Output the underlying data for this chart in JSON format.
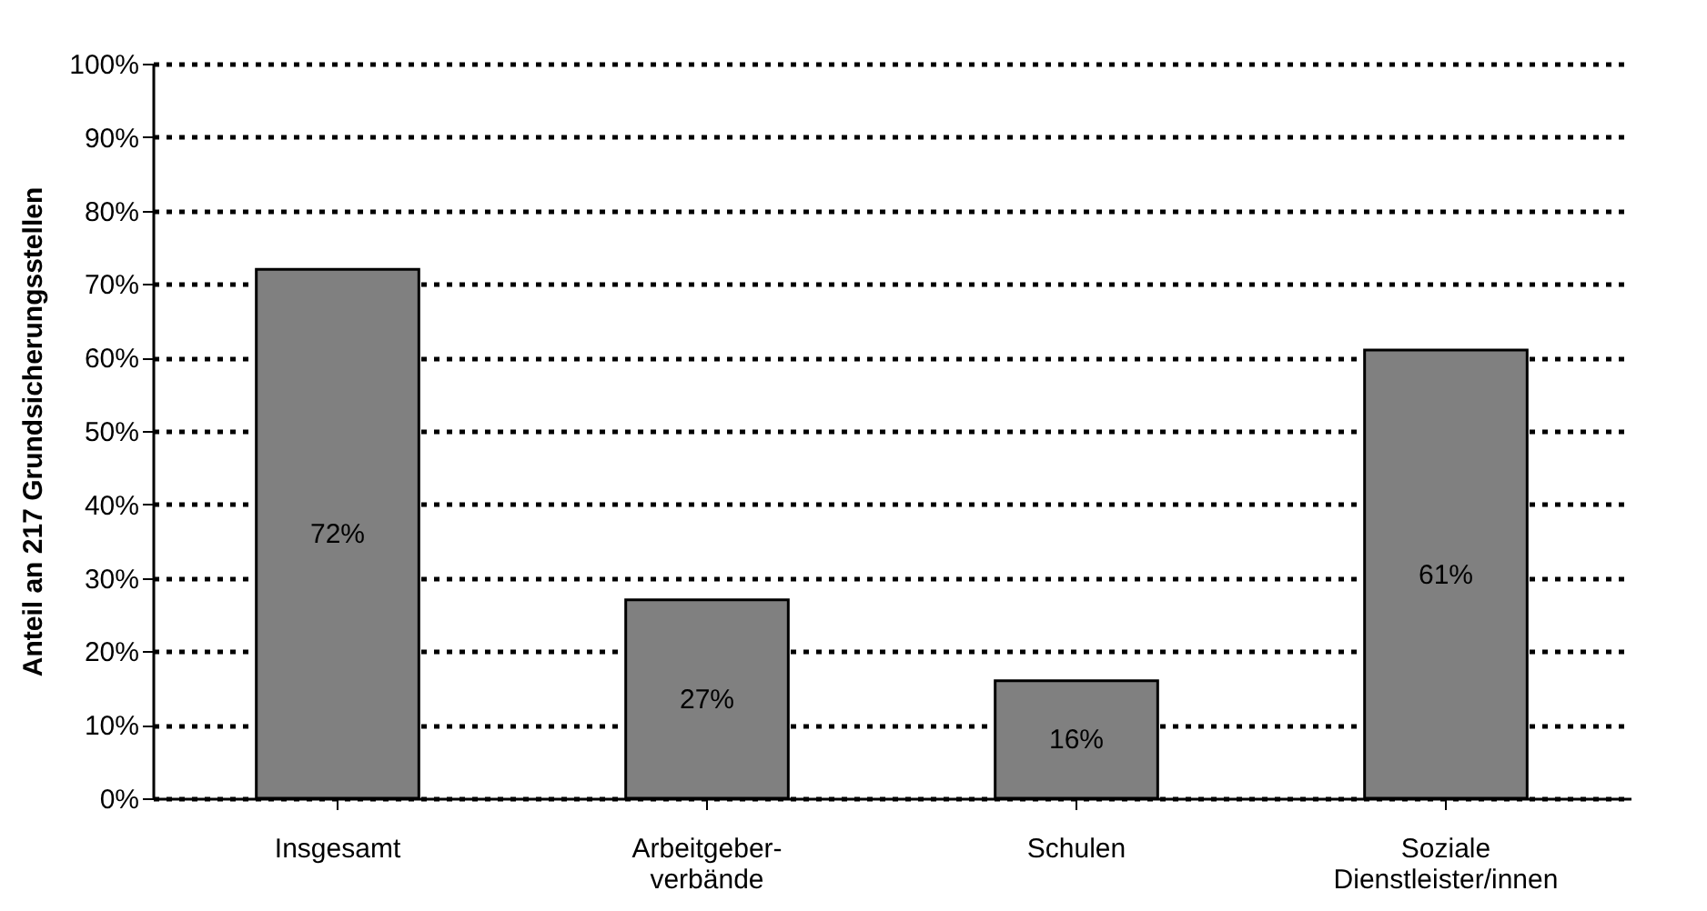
{
  "chart_data": {
    "type": "bar",
    "ylabel": "Anteil an 217 Grundsicherungsstellen",
    "categories": [
      "Insgesamt",
      "Arbeitgeber-\nverbände",
      "Schulen",
      "Soziale\nDienstleister/innen"
    ],
    "values": [
      72,
      27,
      16,
      61
    ],
    "value_labels": [
      "72%",
      "27%",
      "16%",
      "61%"
    ],
    "color": "#808080",
    "ylim": [
      0,
      100
    ],
    "yticks": [
      {
        "value": 0,
        "label": "0%"
      },
      {
        "value": 10,
        "label": "10%"
      },
      {
        "value": 20,
        "label": "20%"
      },
      {
        "value": 30,
        "label": "30%"
      },
      {
        "value": 40,
        "label": "40%"
      },
      {
        "value": 50,
        "label": "50%"
      },
      {
        "value": 60,
        "label": "60%"
      },
      {
        "value": 70,
        "label": "70%"
      },
      {
        "value": 80,
        "label": "80%"
      },
      {
        "value": 90,
        "label": "90%"
      },
      {
        "value": 100,
        "label": "100%"
      }
    ],
    "grid": "y"
  }
}
